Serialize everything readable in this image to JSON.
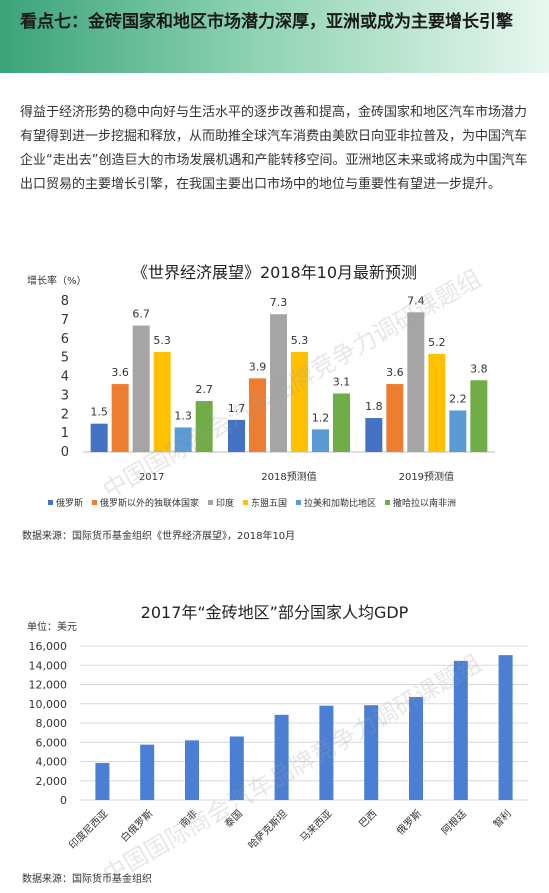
{
  "header": {
    "title": "看点七：金砖国家和地区市场潜力深厚，亚洲或成为主要增长引擎"
  },
  "intro": "得益于经济形势的稳中向好与生活水平的逐步改善和提高，金砖国家和地区汽车市场潜力有望得到进一步挖掘和释放，从而助推全球汽车消费由美欧日向亚非拉普及，为中国汽车企业“走出去”创造巨大的市场发展机遇和产能转移空间。亚洲地区未来或将成为中国汽车出口贸易的主要增长引擎，在我国主要出口市场中的地位与重要性有望进一步提升。",
  "watermark": "中国国际商会汽车品牌竞争力调研课题组",
  "chart_data": [
    {
      "type": "bar",
      "title": "《世界经济展望》2018年10月最新预测",
      "ylabel": "增长率（%）",
      "xlabel": "",
      "ylim": [
        0,
        8
      ],
      "yticks": [
        0,
        1,
        2,
        3,
        4,
        5,
        6,
        7,
        8
      ],
      "grid": false,
      "legend": "bottom",
      "categories": [
        "2017",
        "2018预测值",
        "2019预测值"
      ],
      "series": [
        {
          "name": "俄罗斯",
          "color": "#4472c4",
          "values": [
            1.5,
            1.7,
            1.8
          ]
        },
        {
          "name": "俄罗斯以外的独联体国家",
          "color": "#ed7d31",
          "values": [
            3.6,
            3.9,
            3.6
          ]
        },
        {
          "name": "印度",
          "color": "#a5a5a5",
          "values": [
            6.7,
            7.3,
            7.4
          ]
        },
        {
          "name": "东盟五国",
          "color": "#ffc000",
          "values": [
            5.3,
            5.3,
            5.2
          ]
        },
        {
          "name": "拉美和加勒比地区",
          "color": "#5b9bd5",
          "values": [
            1.3,
            1.2,
            2.2
          ]
        },
        {
          "name": "撒哈拉以南非洲",
          "color": "#70ad47",
          "values": [
            2.7,
            3.1,
            3.8
          ]
        }
      ],
      "source": "数据来源：国际货币基金组织《世界经济展望》，2018年10月"
    },
    {
      "type": "bar",
      "title": "2017年“金砖地区”部分国家人均GDP",
      "ylabel": "单位：美元",
      "xlabel": "",
      "ylim": [
        0,
        16000
      ],
      "yticks": [
        "0",
        "2,000",
        "4,000",
        "6,000",
        "8,000",
        "10,000",
        "12,000",
        "14,000",
        "16,000"
      ],
      "grid": true,
      "bar_color": "#4a7fd4",
      "categories": [
        "印度尼西亚",
        "白俄罗斯",
        "南非",
        "泰国",
        "哈萨克斯坦",
        "马来西亚",
        "巴西",
        "俄罗斯",
        "阿根廷",
        "智利"
      ],
      "values": [
        3850,
        5750,
        6200,
        6600,
        8850,
        9800,
        9850,
        10700,
        14450,
        15050
      ],
      "source": "数据来源：国际货币基金组织"
    }
  ]
}
